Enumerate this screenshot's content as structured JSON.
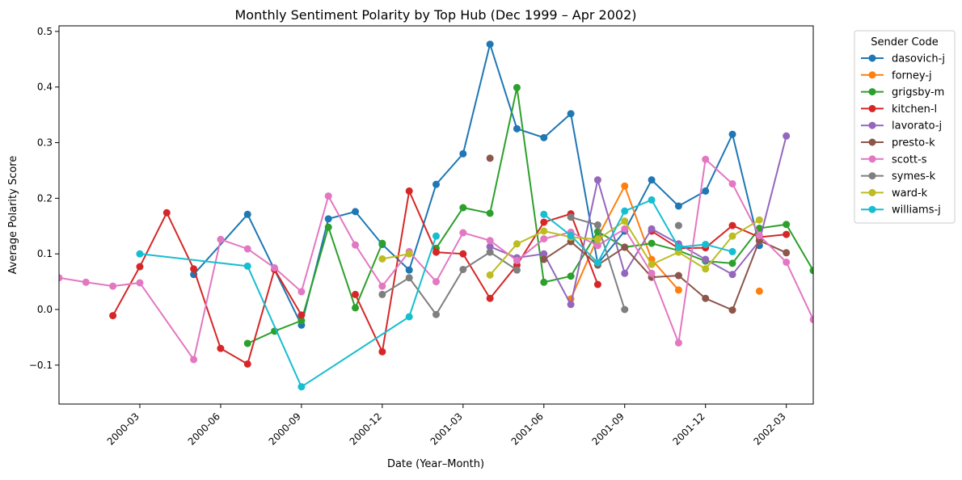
{
  "chart_data": {
    "type": "line",
    "title": "Monthly Sentiment Polarity by Top Hub (Dec 1999 – Apr 2002)",
    "xlabel": "Date (Year–Month)",
    "ylabel": "Average Polarity Score",
    "x_range": [
      "1999-12",
      "2002-04"
    ],
    "ylim": [
      -0.17,
      0.51
    ],
    "x_ticks": [
      {
        "label": "2000-03",
        "date": "2000-03"
      },
      {
        "label": "2000-06",
        "date": "2000-06"
      },
      {
        "label": "2000-09",
        "date": "2000-09"
      },
      {
        "label": "2000-12",
        "date": "2000-12"
      },
      {
        "label": "2001-03",
        "date": "2001-03"
      },
      {
        "label": "2001-06",
        "date": "2001-06"
      },
      {
        "label": "2001-09",
        "date": "2001-09"
      },
      {
        "label": "2001-12",
        "date": "2001-12"
      },
      {
        "label": "2002-03",
        "date": "2002-03"
      }
    ],
    "y_ticks": [
      {
        "label": "−0.1",
        "value": -0.1
      },
      {
        "label": "0.0",
        "value": 0.0
      },
      {
        "label": "0.1",
        "value": 0.1
      },
      {
        "label": "0.2",
        "value": 0.2
      },
      {
        "label": "0.3",
        "value": 0.3
      },
      {
        "label": "0.4",
        "value": 0.4
      },
      {
        "label": "0.5",
        "value": 0.5
      }
    ],
    "grid": false,
    "legend": {
      "title": "Sender Code",
      "placement": "outside-right-top"
    },
    "series": [
      {
        "name": "dasovich-j",
        "color": "#1f77b4",
        "points": [
          [
            "2000-05",
            0.063
          ],
          [
            "2000-07",
            0.171
          ],
          [
            "2000-09",
            -0.028
          ],
          [
            "2000-10",
            0.163
          ],
          [
            "2000-11",
            0.176
          ],
          [
            "2000-12",
            0.117
          ],
          [
            "2001-01",
            0.071
          ],
          [
            "2001-02",
            0.225
          ],
          [
            "2001-03",
            0.28
          ],
          [
            "2001-04",
            0.477
          ],
          [
            "2001-05",
            0.325
          ],
          [
            "2001-06",
            0.309
          ],
          [
            "2001-07",
            0.352
          ],
          [
            "2001-08",
            0.082
          ],
          [
            "2001-09",
            0.141
          ],
          [
            "2001-10",
            0.233
          ],
          [
            "2001-11",
            0.186
          ],
          [
            "2001-12",
            0.213
          ],
          [
            "2002-01",
            0.315
          ],
          [
            "2002-02",
            0.115
          ]
        ]
      },
      {
        "name": "forney-j",
        "color": "#ff7f0e",
        "points": [
          [
            "2001-07",
            0.019
          ],
          [
            "2001-08",
            0.13
          ],
          [
            "2001-09",
            0.222
          ],
          [
            "2001-10",
            0.09
          ],
          [
            "2001-11",
            0.035
          ],
          [
            "2002-01",
            null
          ],
          [
            "2002-02",
            0.033
          ]
        ]
      },
      {
        "name": "grigsby-m",
        "color": "#2ca02c",
        "points": [
          [
            "2000-07",
            -0.061
          ],
          [
            "2000-08",
            -0.039
          ],
          [
            "2000-09",
            -0.02
          ],
          [
            "2000-10",
            0.148
          ],
          [
            "2000-11",
            0.003
          ],
          [
            "2000-12",
            0.119
          ],
          [
            "2001-01",
            null
          ],
          [
            "2001-02",
            0.11
          ],
          [
            "2001-03",
            0.183
          ],
          [
            "2001-04",
            0.173
          ],
          [
            "2001-05",
            0.399
          ],
          [
            "2001-06",
            0.049
          ],
          [
            "2001-07",
            0.06
          ],
          [
            "2001-08",
            0.14
          ],
          [
            "2001-09",
            0.112
          ],
          [
            "2001-10",
            0.119
          ],
          [
            "2001-11",
            0.106
          ],
          [
            "2001-12",
            0.087
          ],
          [
            "2002-01",
            0.083
          ],
          [
            "2002-02",
            0.146
          ],
          [
            "2002-03",
            0.153
          ],
          [
            "2002-04",
            0.07
          ]
        ]
      },
      {
        "name": "kitchen-l",
        "color": "#d62728",
        "points": [
          [
            "2000-02",
            -0.011
          ],
          [
            "2000-03",
            0.077
          ],
          [
            "2000-04",
            0.174
          ],
          [
            "2000-05",
            0.073
          ],
          [
            "2000-06",
            -0.07
          ],
          [
            "2000-07",
            -0.098
          ],
          [
            "2000-08",
            0.072
          ],
          [
            "2000-09",
            -0.01
          ],
          [
            "2000-10",
            null
          ],
          [
            "2000-11",
            0.027
          ],
          [
            "2000-12",
            -0.076
          ],
          [
            "2001-01",
            0.213
          ],
          [
            "2001-02",
            0.103
          ],
          [
            "2001-03",
            0.1
          ],
          [
            "2001-04",
            0.02
          ],
          [
            "2001-05",
            0.08
          ],
          [
            "2001-06",
            0.157
          ],
          [
            "2001-07",
            0.172
          ],
          [
            "2001-08",
            0.045
          ],
          [
            "2001-09",
            null
          ],
          [
            "2001-10",
            0.141
          ],
          [
            "2001-11",
            0.11
          ],
          [
            "2001-12",
            0.111
          ],
          [
            "2002-01",
            0.151
          ],
          [
            "2002-02",
            0.13
          ],
          [
            "2002-03",
            0.135
          ]
        ]
      },
      {
        "name": "lavorato-j",
        "color": "#9467bd",
        "points": [
          [
            "2001-04",
            0.113
          ],
          [
            "2001-05",
            0.093
          ],
          [
            "2001-06",
            0.1
          ],
          [
            "2001-07",
            0.009
          ],
          [
            "2001-08",
            0.233
          ],
          [
            "2001-09",
            0.065
          ],
          [
            "2001-10",
            0.145
          ],
          [
            "2001-11",
            0.118
          ],
          [
            "2001-12",
            0.09
          ],
          [
            "2002-01",
            0.063
          ],
          [
            "2002-02",
            0.123
          ],
          [
            "2002-03",
            0.312
          ]
        ]
      },
      {
        "name": "presto-k",
        "color": "#8c564b",
        "points": [
          [
            "2001-04",
            0.272
          ],
          [
            "2001-05",
            null
          ],
          [
            "2001-06",
            0.09
          ],
          [
            "2001-07",
            0.122
          ],
          [
            "2001-08",
            0.08
          ],
          [
            "2001-09",
            0.112
          ],
          [
            "2001-10",
            0.058
          ],
          [
            "2001-11",
            0.061
          ],
          [
            "2001-12",
            0.02
          ],
          [
            "2002-01",
            -0.001
          ],
          [
            "2002-02",
            0.124
          ],
          [
            "2002-03",
            0.102
          ]
        ]
      },
      {
        "name": "scott-s",
        "color": "#e377c2",
        "points": [
          [
            "1999-12",
            0.057
          ],
          [
            "2000-01",
            0.049
          ],
          [
            "2000-02",
            0.042
          ],
          [
            "2000-03",
            0.048
          ],
          [
            "2000-05",
            -0.09
          ],
          [
            "2000-06",
            0.126
          ],
          [
            "2000-07",
            0.109
          ],
          [
            "2000-08",
            0.075
          ],
          [
            "2000-09",
            0.032
          ],
          [
            "2000-10",
            0.204
          ],
          [
            "2000-11",
            0.116
          ],
          [
            "2000-12",
            0.042
          ],
          [
            "2001-01",
            0.104
          ],
          [
            "2001-02",
            0.05
          ],
          [
            "2001-03",
            0.138
          ],
          [
            "2001-04",
            0.124
          ],
          [
            "2001-05",
            0.088
          ],
          [
            "2001-06",
            0.127
          ],
          [
            "2001-07",
            0.139
          ],
          [
            "2001-08",
            0.115
          ],
          [
            "2001-09",
            0.145
          ],
          [
            "2001-10",
            0.065
          ],
          [
            "2001-11",
            -0.06
          ],
          [
            "2001-12",
            0.27
          ],
          [
            "2002-01",
            0.226
          ],
          [
            "2002-02",
            0.133
          ],
          [
            "2002-03",
            0.085
          ],
          [
            "2002-04",
            -0.018
          ]
        ]
      },
      {
        "name": "symes-k",
        "color": "#7f7f7f",
        "points": [
          [
            "2000-12",
            0.027
          ],
          [
            "2001-01",
            0.057
          ],
          [
            "2001-02",
            -0.009
          ],
          [
            "2001-03",
            0.072
          ],
          [
            "2001-04",
            0.103
          ],
          [
            "2001-05",
            0.071
          ],
          [
            "2001-06",
            null
          ],
          [
            "2001-07",
            0.166
          ],
          [
            "2001-08",
            0.152
          ],
          [
            "2001-09",
            0.0
          ],
          [
            "2001-10",
            null
          ],
          [
            "2001-11",
            0.151
          ]
        ]
      },
      {
        "name": "ward-k",
        "color": "#bcbd22",
        "points": [
          [
            "2000-12",
            0.091
          ],
          [
            "2001-01",
            0.1
          ],
          [
            "2001-03",
            null
          ],
          [
            "2001-04",
            0.062
          ],
          [
            "2001-05",
            0.118
          ],
          [
            "2001-06",
            0.141
          ],
          [
            "2001-07",
            0.13
          ],
          [
            "2001-08",
            0.126
          ],
          [
            "2001-09",
            0.159
          ],
          [
            "2001-10",
            0.081
          ],
          [
            "2001-11",
            0.103
          ],
          [
            "2001-12",
            0.073
          ],
          [
            "2002-01",
            0.132
          ],
          [
            "2002-02",
            0.161
          ]
        ]
      },
      {
        "name": "williams-j",
        "color": "#17becf",
        "points": [
          [
            "2000-03",
            0.1
          ],
          [
            "2000-07",
            0.078
          ],
          [
            "2000-09",
            -0.139
          ],
          [
            "2001-01",
            -0.013
          ],
          [
            "2001-02",
            0.132
          ],
          [
            "2001-04",
            null
          ],
          [
            "2001-06",
            0.171
          ],
          [
            "2001-07",
            0.133
          ],
          [
            "2001-08",
            0.084
          ],
          [
            "2001-09",
            0.177
          ],
          [
            "2001-10",
            0.197
          ],
          [
            "2001-11",
            0.112
          ],
          [
            "2001-12",
            0.117
          ],
          [
            "2002-01",
            0.104
          ]
        ]
      }
    ]
  }
}
